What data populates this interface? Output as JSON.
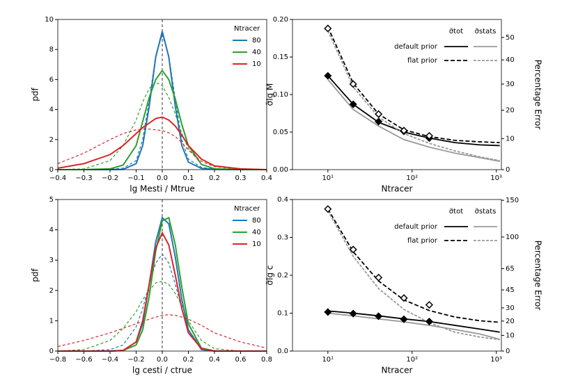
{
  "chart_data": [
    {
      "type": "line",
      "xlabel": "lg Mesti / Mtrue",
      "ylabel": "pdf",
      "x": [
        -0.4,
        -0.3,
        -0.2,
        -0.15,
        -0.1,
        -0.075,
        -0.05,
        -0.025,
        0,
        0.025,
        0.05,
        0.075,
        0.1,
        0.15,
        0.2,
        0.3,
        0.4
      ],
      "xlim": [
        -0.4,
        0.4
      ],
      "xticks": [
        {
          "value": -0.4,
          "label": "−0.4"
        },
        {
          "value": -0.3,
          "label": "−0.3"
        },
        {
          "value": -0.2,
          "label": "−0.2"
        },
        {
          "value": -0.1,
          "label": "−0.1"
        },
        {
          "value": 0,
          "label": "0.0"
        },
        0.1,
        0.2,
        0.3,
        0.4
      ],
      "ylim": [
        0,
        10
      ],
      "yticks": [
        0,
        2,
        4,
        6,
        8,
        10
      ],
      "vline": 0,
      "legend_title": "Ntracer",
      "series": [
        {
          "name": "80",
          "color": "#1f77b4",
          "values": [
            0,
            0,
            0,
            0.02,
            0.4,
            1.6,
            4.2,
            7.5,
            9.2,
            7.5,
            4.2,
            1.6,
            0.5,
            0.08,
            0.02,
            0,
            0
          ],
          "dashed": [
            0,
            0,
            0.02,
            0.1,
            0.6,
            2.0,
            4.6,
            7.6,
            9.0,
            7.6,
            4.7,
            2.0,
            0.7,
            0.15,
            0.03,
            0,
            0
          ]
        },
        {
          "name": "40",
          "color": "#2ca02c",
          "values": [
            0,
            0,
            0.05,
            0.3,
            1.6,
            3.2,
            4.8,
            6.0,
            6.6,
            6.0,
            4.7,
            3.0,
            1.6,
            0.35,
            0.05,
            0,
            0
          ],
          "dashed": [
            0,
            0.05,
            0.6,
            1.6,
            3.3,
            4.5,
            5.4,
            5.8,
            5.6,
            4.8,
            3.7,
            2.4,
            1.4,
            0.35,
            0.08,
            0,
            0
          ]
        },
        {
          "name": "10",
          "color": "#d62728",
          "values": [
            0.1,
            0.4,
            1.0,
            1.6,
            2.4,
            2.8,
            3.1,
            3.4,
            3.5,
            3.3,
            2.9,
            2.3,
            1.6,
            0.7,
            0.25,
            0.05,
            0
          ],
          "dashed": [
            0.4,
            1.1,
            2.0,
            2.4,
            2.65,
            2.7,
            2.7,
            2.65,
            2.6,
            2.45,
            2.2,
            1.8,
            1.3,
            0.55,
            0.2,
            0.02,
            0
          ]
        }
      ]
    },
    {
      "type": "line",
      "xscale": "log",
      "xlabel": "Ntracer",
      "ylabel": "σ̃lg M",
      "y2label": "Percentage Error",
      "x": [
        10,
        20,
        40,
        80,
        160,
        320,
        640,
        1100
      ],
      "xlim": [
        3.8,
        1150
      ],
      "xticks": [
        {
          "value": 10,
          "label": "10¹"
        },
        {
          "value": 100,
          "label": "10²"
        },
        {
          "value": 1000,
          "label": "10³"
        }
      ],
      "ylim": [
        0,
        0.2
      ],
      "yticks": [
        {
          "value": 0,
          "label": "0.00"
        },
        {
          "value": 0.05,
          "label": "0.05"
        },
        {
          "value": 0.1,
          "label": "0.10"
        },
        {
          "value": 0.15,
          "label": "0.15"
        },
        {
          "value": 0.2,
          "label": "0.20"
        }
      ],
      "y2ticks": [
        0,
        10,
        20,
        30,
        40,
        50
      ],
      "legend": {
        "rows": [
          {
            "label": "default prior",
            "dash": false
          },
          {
            "label": "flat prior",
            "dash": true
          }
        ],
        "columns": [
          {
            "label": "σ̃tot",
            "color": "#000000"
          },
          {
            "label": "σ̃stats",
            "color": "#999999"
          }
        ]
      },
      "series": [
        {
          "color": "#000000",
          "dash": false,
          "values": [
            0.125,
            0.087,
            0.063,
            0.05,
            0.042,
            0.036,
            0.033,
            0.032
          ]
        },
        {
          "color": "#999999",
          "dash": false,
          "values": [
            0.12,
            0.08,
            0.058,
            0.04,
            0.03,
            0.022,
            0.016,
            0.011
          ]
        },
        {
          "color": "#000000",
          "dash": true,
          "values": [
            0.19,
            0.115,
            0.074,
            0.053,
            0.044,
            0.039,
            0.037,
            0.036
          ]
        },
        {
          "color": "#999999",
          "dash": true,
          "values": [
            0.185,
            0.11,
            0.07,
            0.048,
            0.035,
            0.025,
            0.017,
            0.012
          ]
        },
        {
          "color": "#000000",
          "marker": "filled",
          "values": [
            0.125,
            0.087,
            0.064,
            0.051,
            0.042,
            null,
            null,
            null
          ]
        },
        {
          "color": "#000000",
          "marker": "open",
          "values": [
            0.188,
            0.114,
            0.074,
            0.052,
            0.045,
            null,
            null,
            null
          ]
        }
      ]
    },
    {
      "type": "line",
      "xlabel": "lg cesti / ctrue",
      "ylabel": "pdf",
      "x": [
        -0.8,
        -0.6,
        -0.4,
        -0.3,
        -0.2,
        -0.15,
        -0.1,
        -0.05,
        0,
        0.05,
        0.1,
        0.15,
        0.2,
        0.3,
        0.4,
        0.6,
        0.8
      ],
      "xlim": [
        -0.8,
        0.8
      ],
      "xticks": [
        {
          "value": -0.8,
          "label": "−0.8"
        },
        {
          "value": -0.6,
          "label": "−0.6"
        },
        {
          "value": -0.4,
          "label": "−0.4"
        },
        {
          "value": -0.2,
          "label": "−0.2"
        },
        {
          "value": 0,
          "label": "0.0"
        },
        0.2,
        0.4,
        0.6,
        0.8
      ],
      "ylim": [
        0,
        5
      ],
      "yticks": [
        0,
        1,
        2,
        3,
        4,
        5
      ],
      "vline": 0,
      "legend_title": "Ntracer",
      "series": [
        {
          "name": "80",
          "color": "#1f77b4",
          "values": [
            0,
            0,
            0,
            0.02,
            0.3,
            0.9,
            2.2,
            3.6,
            4.4,
            4.2,
            3.1,
            1.7,
            0.7,
            0.05,
            0,
            0,
            0
          ],
          "dashed": [
            0,
            0,
            0.05,
            0.2,
            0.8,
            1.4,
            2.2,
            2.9,
            3.2,
            2.9,
            2.2,
            1.4,
            0.7,
            0.1,
            0.02,
            0,
            0
          ]
        },
        {
          "name": "40",
          "color": "#2ca02c",
          "values": [
            0,
            0,
            0,
            0.02,
            0.2,
            0.7,
            1.8,
            3.3,
            4.3,
            4.4,
            3.5,
            2.1,
            0.9,
            0.1,
            0,
            0,
            0
          ],
          "dashed": [
            0,
            0.05,
            0.35,
            0.75,
            1.3,
            1.7,
            2.0,
            2.25,
            2.3,
            2.2,
            1.9,
            1.5,
            1.0,
            0.35,
            0.08,
            0,
            0
          ]
        },
        {
          "name": "10",
          "color": "#d62728",
          "values": [
            0,
            0,
            0,
            0.02,
            0.3,
            1.0,
            2.2,
            3.4,
            3.9,
            3.5,
            2.5,
            1.4,
            0.6,
            0.08,
            0,
            0,
            0
          ],
          "dashed": [
            0.15,
            0.35,
            0.6,
            0.75,
            0.9,
            0.98,
            1.05,
            1.12,
            1.18,
            1.2,
            1.18,
            1.12,
            1.05,
            0.85,
            0.6,
            0.3,
            0.1
          ]
        }
      ]
    },
    {
      "type": "line",
      "xscale": "log",
      "xlabel": "Ntracer",
      "ylabel": "σ̃lg c",
      "y2label": "Percentage Error",
      "x": [
        10,
        20,
        40,
        80,
        160,
        320,
        640,
        1100
      ],
      "xlim": [
        3.8,
        1150
      ],
      "xticks": [
        {
          "value": 10,
          "label": "10¹"
        },
        {
          "value": 100,
          "label": "10²"
        },
        {
          "value": 1000,
          "label": "10³"
        }
      ],
      "ylim": [
        0,
        0.4
      ],
      "yticks": [
        {
          "value": 0,
          "label": "0.0"
        },
        0.1,
        0.2,
        0.3,
        0.4
      ],
      "y2ticks": [
        0,
        10,
        20,
        30,
        45,
        65,
        100,
        150
      ],
      "legend": {
        "rows": [
          {
            "label": "default prior",
            "dash": false
          },
          {
            "label": "flat prior",
            "dash": true
          }
        ],
        "columns": [
          {
            "label": "σ̃tot",
            "color": "#000000"
          },
          {
            "label": "σ̃stats",
            "color": "#999999"
          }
        ]
      },
      "series": [
        {
          "color": "#000000",
          "dash": false,
          "values": [
            0.106,
            0.1,
            0.093,
            0.085,
            0.078,
            0.068,
            0.058,
            0.05
          ]
        },
        {
          "color": "#999999",
          "dash": false,
          "values": [
            0.1,
            0.093,
            0.085,
            0.077,
            0.068,
            0.057,
            0.045,
            0.031
          ]
        },
        {
          "color": "#000000",
          "dash": true,
          "values": [
            0.375,
            0.262,
            0.185,
            0.135,
            0.107,
            0.09,
            0.08,
            0.076
          ]
        },
        {
          "color": "#999999",
          "dash": true,
          "values": [
            0.37,
            0.25,
            0.165,
            0.11,
            0.075,
            0.05,
            0.037,
            0.03
          ]
        },
        {
          "color": "#000000",
          "marker": "filled",
          "values": [
            0.103,
            0.099,
            0.092,
            0.084,
            0.078,
            null,
            null,
            null
          ]
        },
        {
          "color": "#000000",
          "marker": "open",
          "values": [
            0.375,
            0.268,
            0.194,
            0.14,
            0.122,
            null,
            null,
            null
          ]
        }
      ]
    }
  ]
}
